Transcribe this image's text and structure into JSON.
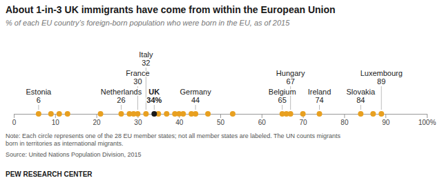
{
  "chart_data": {
    "type": "strip",
    "title": "About 1-in-3 UK immigrants have come from within the European Union",
    "subtitle": "% of each EU country’s foreign-born population who were born in the EU, as of 2015",
    "note": "Note: Each circle represents one of the 28 EU member states; not all member states are labeled. The UN counts migrants\nborn in territories as international migrants.",
    "source": "Source: United Nations Population Division, 2015",
    "branding": "PEW RESEARCH CENTER",
    "values": [
      6,
      9,
      11,
      13,
      21,
      26,
      28,
      29,
      30,
      32,
      34,
      35,
      37,
      39,
      40,
      41,
      43,
      44,
      47,
      53,
      65,
      66,
      67,
      70,
      74,
      84,
      87,
      89
    ],
    "color": "#E8A020",
    "colors": [
      "#E8A020",
      "#E8A020",
      "#E8A020",
      "#E8A020",
      "#E8A020",
      "#E8A020",
      "#E8A020",
      "#E8A020",
      "#E8A020",
      "#E8A020",
      "#1a1a1a",
      "#E8A020",
      "#E8A020",
      "#E8A020",
      "#E8A020",
      "#E8A020",
      "#E8A020",
      "#E8A020",
      "#E8A020",
      "#E8A020",
      "#E8A020",
      "#E8A020",
      "#E8A020",
      "#E8A020",
      "#E8A020",
      "#E8A020",
      "#E8A020",
      "#E8A020"
    ],
    "annotations": {
      "names": [
        "Estonia",
        "Netherlands",
        "France",
        "Italy",
        "UK",
        "Germany",
        "Belgium",
        "Hungary",
        "Ireland",
        "Slovakia",
        "Luxembourg"
      ],
      "values": [
        6,
        26,
        30,
        32,
        34,
        44,
        65,
        67,
        74,
        84,
        89
      ],
      "value_labels": [
        "6",
        "26",
        "30",
        "32",
        "34%",
        "44",
        "65",
        "67",
        "74",
        "84",
        "89"
      ]
    },
    "xlim": [
      0,
      100
    ],
    "xticks": [
      0,
      10,
      20,
      30,
      40,
      50,
      60,
      70,
      80,
      90,
      {
        "value": 100,
        "label": "100%"
      }
    ],
    "tick_labels": "x",
    "grid": false
  }
}
